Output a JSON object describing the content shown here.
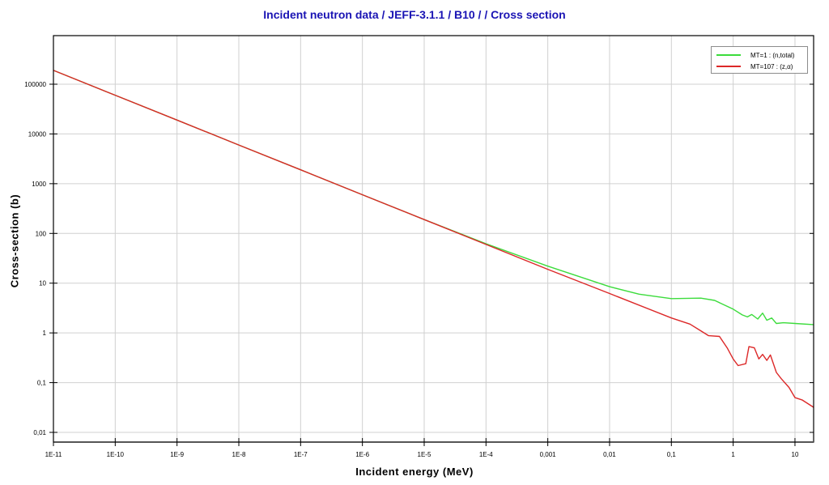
{
  "title": "Incident neutron data / JEFF-3.1.1 / B10 / / Cross section",
  "chart_data": {
    "type": "line",
    "title": "Incident neutron data / JEFF-3.1.1 / B10 / / Cross section",
    "xlabel": "Incident energy (MeV)",
    "ylabel": "Cross-section (b)",
    "xscale": "log",
    "yscale": "log",
    "xlim": [
      1e-11,
      20
    ],
    "ylim": [
      0.0064,
      950000
    ],
    "grid": true,
    "legend_position": "top-right",
    "x_ticks": [
      {
        "value": 1e-11,
        "label": "1E-11"
      },
      {
        "value": 1e-10,
        "label": "1E-10"
      },
      {
        "value": 1e-09,
        "label": "1E-9"
      },
      {
        "value": 1e-08,
        "label": "1E-8"
      },
      {
        "value": 1e-07,
        "label": "1E-7"
      },
      {
        "value": 1e-06,
        "label": "1E-6"
      },
      {
        "value": 1e-05,
        "label": "1E-5"
      },
      {
        "value": 0.0001,
        "label": "1E-4"
      },
      {
        "value": 0.001,
        "label": "0,001"
      },
      {
        "value": 0.01,
        "label": "0,01"
      },
      {
        "value": 0.1,
        "label": "0,1"
      },
      {
        "value": 1,
        "label": "1"
      },
      {
        "value": 10,
        "label": "10"
      }
    ],
    "y_ticks": [
      {
        "value": 100000,
        "label": "100000"
      },
      {
        "value": 10000,
        "label": "10000"
      },
      {
        "value": 1000,
        "label": "1000"
      },
      {
        "value": 100,
        "label": "100"
      },
      {
        "value": 10,
        "label": "10"
      },
      {
        "value": 1,
        "label": "1"
      },
      {
        "value": 0.1,
        "label": "0,1"
      },
      {
        "value": 0.01,
        "label": "0,01"
      }
    ],
    "series": [
      {
        "name": "MT=1 : (n,total)",
        "color": "#3cdc3c",
        "x": [
          1e-11,
          1e-10,
          1e-09,
          1e-08,
          1e-07,
          1e-06,
          1e-05,
          0.0001,
          0.001,
          0.01,
          0.03,
          0.1,
          0.3,
          0.5,
          1.0,
          1.4,
          1.7,
          2.0,
          2.5,
          3.0,
          3.5,
          4.2,
          5.0,
          6.5,
          10,
          20
        ],
        "y": [
          190000,
          60000,
          19000,
          6000,
          1900,
          600,
          190,
          62,
          22,
          8.5,
          6.0,
          4.9,
          5.0,
          4.5,
          3.0,
          2.3,
          2.1,
          2.35,
          1.9,
          2.5,
          1.8,
          2.0,
          1.55,
          1.6,
          1.55,
          1.47
        ]
      },
      {
        "name": "MT=107 : (z,α)",
        "color": "#dc2828",
        "x": [
          1e-11,
          1e-10,
          1e-09,
          1e-08,
          1e-07,
          1e-06,
          1e-05,
          0.0001,
          0.001,
          0.01,
          0.1,
          0.2,
          0.3,
          0.4,
          0.6,
          0.8,
          1.0,
          1.2,
          1.6,
          1.8,
          2.2,
          2.6,
          3.0,
          3.5,
          4.0,
          5.0,
          6.0,
          8.0,
          10,
          13,
          20
        ],
        "y": [
          190000,
          60000,
          19000,
          6000,
          1900,
          600,
          190,
          60,
          19,
          6.2,
          2.0,
          1.5,
          1.1,
          0.88,
          0.85,
          0.5,
          0.3,
          0.22,
          0.24,
          0.53,
          0.5,
          0.3,
          0.37,
          0.28,
          0.36,
          0.16,
          0.12,
          0.08,
          0.05,
          0.045,
          0.032
        ]
      }
    ]
  },
  "legend": [
    {
      "label": "MT=1 : (n,total)",
      "color": "#3cdc3c"
    },
    {
      "label": "MT=107 : (z,α)",
      "color": "#dc2828"
    }
  ]
}
